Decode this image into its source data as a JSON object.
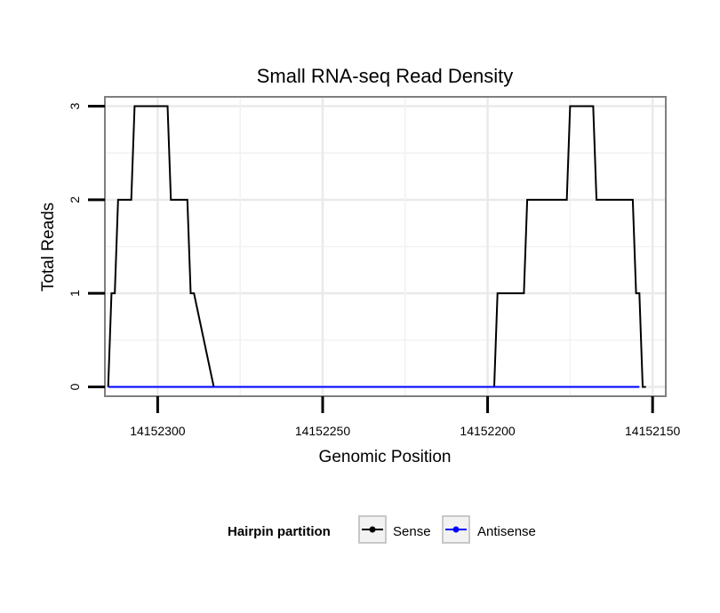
{
  "chart_data": {
    "type": "line",
    "title": "Small RNA-seq Read Density",
    "xlabel": "Genomic Position",
    "ylabel": "Total Reads",
    "x_reversed": true,
    "xlim": [
      14152316,
      14152146
    ],
    "ylim": [
      -0.1,
      3.1
    ],
    "x_ticks": [
      14152300,
      14152250,
      14152200,
      14152150
    ],
    "x_tick_labels": [
      "14152300",
      "14152250",
      "14152200",
      "14152150"
    ],
    "y_ticks": [
      0,
      1,
      2,
      3
    ],
    "y_tick_labels": [
      "0",
      "1",
      "2",
      "3"
    ],
    "grid": true,
    "legend": {
      "title": "Hairpin partition",
      "position": "bottom",
      "entries": [
        "Sense",
        "Antisense"
      ]
    },
    "series": [
      {
        "name": "Sense",
        "color": "#000000",
        "x": [
          14152315,
          14152314,
          14152313,
          14152312,
          14152311,
          14152308,
          14152307,
          14152303,
          14152302,
          14152297,
          14152296,
          14152292,
          14152291,
          14152290,
          14152289,
          14152283,
          14152198,
          14152197,
          14152189,
          14152188,
          14152176,
          14152175,
          14152168,
          14152167,
          14152156,
          14152155,
          14152154,
          14152153,
          14152152
        ],
        "values": [
          0,
          1,
          1,
          2,
          2,
          2,
          3,
          3,
          3,
          3,
          2,
          2,
          2,
          1,
          1,
          0,
          0,
          1,
          1,
          2,
          2,
          3,
          3,
          2,
          2,
          1,
          1,
          0,
          0
        ]
      },
      {
        "name": "Antisense",
        "color": "#0000ff",
        "x": [
          14152315,
          14152284,
          14152197,
          14152154
        ],
        "values": [
          0,
          0,
          0,
          0
        ]
      }
    ]
  }
}
